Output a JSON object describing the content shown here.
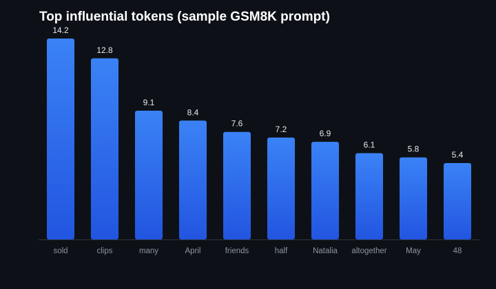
{
  "chart_data": {
    "type": "bar",
    "title": "Top influential tokens (sample GSM8K prompt)",
    "xlabel": "",
    "ylabel": "",
    "categories": [
      "sold",
      "clips",
      "many",
      "April",
      "friends",
      "half",
      "Natalia",
      "altogether",
      "May",
      "48"
    ],
    "values": [
      14.2,
      12.8,
      9.1,
      8.4,
      7.6,
      7.2,
      6.9,
      6.1,
      5.8,
      5.4
    ],
    "data_labels": [
      "14.2",
      "12.8",
      "9.1",
      "8.4",
      "7.6",
      "7.2",
      "6.9",
      "6.1",
      "5.8",
      "5.4"
    ],
    "ylim": [
      0,
      14.2
    ],
    "grid": false,
    "colors": {
      "bar_top": "#3b82f6",
      "bar_bottom": "#2255e0",
      "background": "#0d1117",
      "axis": "#30363d"
    }
  }
}
